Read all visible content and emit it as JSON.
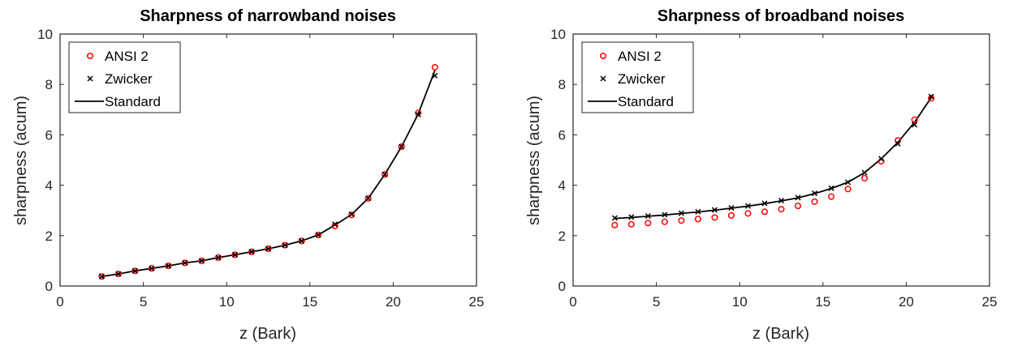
{
  "chart_data": [
    {
      "type": "scatter",
      "title": "Sharpness of narrowband noises",
      "xlabel": "z (Bark)",
      "ylabel": "sharpness (acum)",
      "xlim": [
        0,
        25
      ],
      "ylim": [
        0,
        10
      ],
      "xticks": [
        "0",
        "5",
        "10",
        "15",
        "20",
        "25"
      ],
      "yticks": [
        "0",
        "2",
        "4",
        "6",
        "8",
        "10"
      ],
      "grid": false,
      "legend": "top-left",
      "x": [
        2.5,
        3.5,
        4.5,
        5.5,
        6.5,
        7.5,
        8.5,
        9.5,
        10.5,
        11.5,
        12.5,
        13.5,
        14.5,
        15.5,
        16.5,
        17.5,
        18.5,
        19.5,
        20.5,
        21.5,
        22.5
      ],
      "series": [
        {
          "name": "ANSI 2",
          "marker": "circle",
          "color": "#ff0000",
          "values": [
            0.38,
            0.48,
            0.6,
            0.7,
            0.8,
            0.92,
            1.0,
            1.13,
            1.24,
            1.36,
            1.48,
            1.62,
            1.79,
            2.03,
            2.38,
            2.82,
            3.48,
            4.43,
            5.53,
            6.87,
            8.68
          ]
        },
        {
          "name": "Zwicker",
          "marker": "x",
          "color": "#000000",
          "values": [
            0.38,
            0.48,
            0.6,
            0.7,
            0.8,
            0.92,
            1.0,
            1.13,
            1.24,
            1.36,
            1.48,
            1.62,
            1.79,
            2.03,
            2.45,
            2.85,
            3.48,
            4.43,
            5.53,
            6.8,
            8.35
          ]
        },
        {
          "name": "Standard",
          "marker": "line",
          "color": "#000000",
          "values": [
            0.38,
            0.48,
            0.6,
            0.7,
            0.8,
            0.92,
            1.0,
            1.13,
            1.24,
            1.36,
            1.48,
            1.62,
            1.79,
            2.03,
            2.42,
            2.84,
            3.48,
            4.43,
            5.53,
            6.83,
            8.55
          ]
        }
      ]
    },
    {
      "type": "scatter",
      "title": "Sharpness of broadband noises",
      "xlabel": "z (Bark)",
      "ylabel": "sharpness (acum)",
      "xlim": [
        0,
        25
      ],
      "ylim": [
        0,
        10
      ],
      "xticks": [
        "0",
        "5",
        "10",
        "15",
        "20",
        "25"
      ],
      "yticks": [
        "0",
        "2",
        "4",
        "6",
        "8",
        "10"
      ],
      "grid": false,
      "legend": "top-left",
      "x": [
        2.5,
        3.5,
        4.5,
        5.5,
        6.5,
        7.5,
        8.5,
        9.5,
        10.5,
        11.5,
        12.5,
        13.5,
        14.5,
        15.5,
        16.5,
        17.5,
        18.5,
        19.5,
        20.5,
        21.5
      ],
      "series": [
        {
          "name": "ANSI 2",
          "marker": "circle",
          "color": "#ff0000",
          "values": [
            2.42,
            2.45,
            2.5,
            2.55,
            2.6,
            2.66,
            2.72,
            2.8,
            2.88,
            2.95,
            3.05,
            3.18,
            3.35,
            3.55,
            3.85,
            4.28,
            4.95,
            5.78,
            6.6,
            7.45
          ]
        },
        {
          "name": "Zwicker",
          "marker": "x",
          "color": "#000000",
          "values": [
            2.7,
            2.74,
            2.78,
            2.83,
            2.89,
            2.95,
            3.02,
            3.1,
            3.18,
            3.28,
            3.39,
            3.51,
            3.68,
            3.88,
            4.12,
            4.5,
            5.05,
            5.65,
            6.4,
            7.52
          ]
        },
        {
          "name": "Standard",
          "marker": "line",
          "color": "#000000",
          "values": [
            2.68,
            2.72,
            2.77,
            2.82,
            2.88,
            2.94,
            3.01,
            3.09,
            3.17,
            3.27,
            3.38,
            3.5,
            3.67,
            3.87,
            4.12,
            4.5,
            5.05,
            5.7,
            6.5,
            7.48
          ]
        }
      ]
    }
  ]
}
